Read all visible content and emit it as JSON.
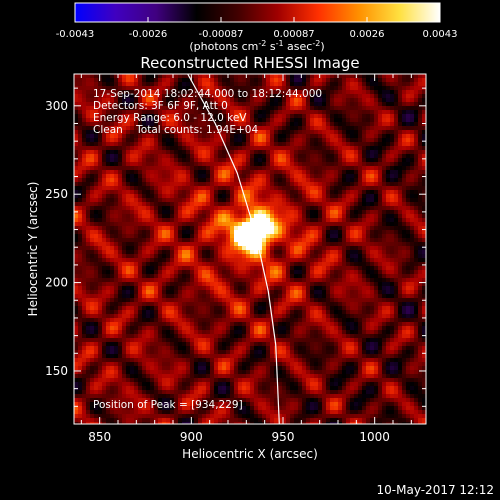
{
  "colorbar": {
    "ticks": [
      "-0.0043",
      "-0.0026",
      "-0.00087",
      "0.00087",
      "0.0026",
      "0.0043"
    ],
    "unit_prefix": "(photons cm",
    "unit_sup1": "-2",
    "unit_mid1": " s",
    "unit_sup2": "-1",
    "unit_mid2": " asec",
    "unit_sup3": "-2",
    "unit_suffix": ")",
    "colormap": [
      "#0000ff",
      "#4000c0",
      "#400080",
      "#000000",
      "#400000",
      "#a00000",
      "#ff3000",
      "#ff9000",
      "#ffe040",
      "#ffffff"
    ]
  },
  "annotations": {
    "time": "17-Sep-2014 18:02:44.000 to 18:12:44.000",
    "detectors": "Detectors: 3F 6F 9F, Att 0",
    "energy": "Energy Range: 6.0 - 12.0 keV",
    "clean": "Clean    Total counts: 1.94E+04",
    "peak": "Position of Peak = [934,229]"
  },
  "footer": {
    "date": "10-May-2017 12:12"
  },
  "chart_data": {
    "type": "heatmap",
    "title": "Reconstructed RHESSI Image",
    "xlabel": "Heliocentric X (arcsec)",
    "ylabel": "Heliocentric Y (arcsec)",
    "xlim": [
      836,
      1028
    ],
    "ylim": [
      120,
      318
    ],
    "xticks": [
      850,
      900,
      950,
      1000
    ],
    "yticks": [
      150,
      200,
      250,
      300
    ],
    "xtick_labels": [
      "850",
      "900",
      "950",
      "1000"
    ],
    "ytick_labels": [
      "150",
      "200",
      "250",
      "300"
    ],
    "zlim": [
      -0.0043,
      0.0043
    ],
    "peak": {
      "x": 934,
      "y": 229,
      "value": 0.0043
    },
    "limb_curve": [
      {
        "x": 898,
        "y": 318
      },
      {
        "x": 913,
        "y": 290
      },
      {
        "x": 925,
        "y": 262
      },
      {
        "x": 935,
        "y": 228
      },
      {
        "x": 942,
        "y": 195
      },
      {
        "x": 946,
        "y": 165
      },
      {
        "x": 947,
        "y": 143
      },
      {
        "x": 948,
        "y": 120
      }
    ]
  }
}
